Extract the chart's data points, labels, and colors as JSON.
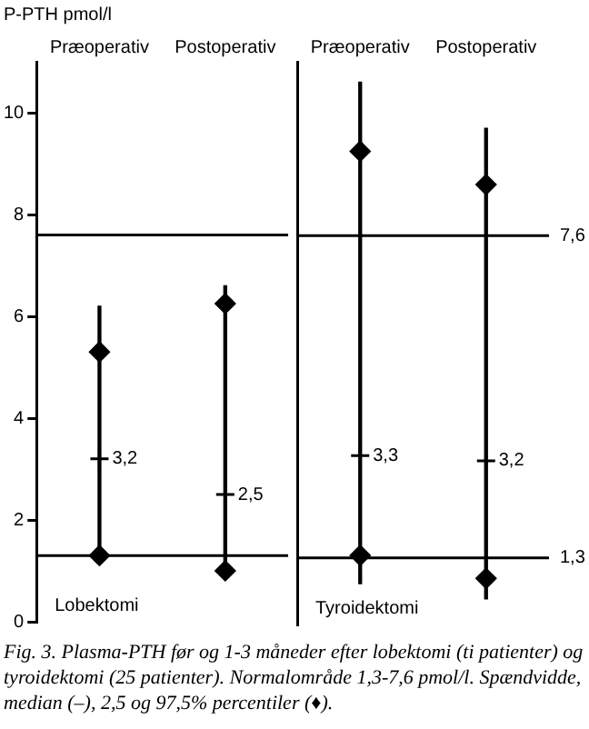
{
  "chart_data": [
    {
      "type": "bar",
      "ylabel": "P-PTH pmol/l",
      "categories": [
        "Præoperativ",
        "Postoperativ"
      ],
      "ylim": [
        0,
        11
      ],
      "yticks": [
        0,
        2,
        4,
        6,
        8,
        10
      ],
      "grid": false,
      "legend": false,
      "series": [
        {
          "type": "bar",
          "color": "#000000",
          "base": [
            1.3,
            1.0
          ],
          "values": [
            4.9,
            5.6
          ]
        },
        {
          "type": "scatter",
          "marker": "diamond",
          "color": "#000000",
          "values": [
            5.3,
            6.25
          ]
        },
        {
          "type": "scatter",
          "marker": "diamond",
          "color": "#000000",
          "values": [
            1.3,
            1.0
          ]
        },
        {
          "type": "scatter",
          "marker": "cross",
          "color": "#000000",
          "values": [
            3.2,
            2.5
          ],
          "value_labels": [
            "3,2",
            "2,5"
          ]
        }
      ],
      "ref_lines": [
        {
          "axis": "y",
          "value": 7.6
        },
        {
          "axis": "y",
          "value": 1.3
        }
      ],
      "annotations": [
        "Lobektomi",
        "Fig. 3.  Plasma-PTH før og 1-3 måneder efter lobektomi (ti patienter) og tyroidektomi (25 patienter). Normalområde 1,3-7,6 pmol/l. Spændvidde, median (–), 2,5 og 97,5% percentiler (♦)."
      ]
    },
    {
      "type": "bar",
      "categories": [
        "Præoperativ",
        "Postoperativ"
      ],
      "ylim": [
        0,
        11
      ],
      "tick_labels": "x",
      "grid": false,
      "legend": false,
      "series": [
        {
          "type": "bar",
          "color": "#000000",
          "base": [
            0.8,
            0.5
          ],
          "values": [
            9.8,
            9.2
          ]
        },
        {
          "type": "scatter",
          "marker": "diamond",
          "color": "#000000",
          "values": [
            9.25,
            8.6
          ]
        },
        {
          "type": "scatter",
          "marker": "diamond",
          "color": "#000000",
          "values": [
            1.35,
            0.9
          ]
        },
        {
          "type": "scatter",
          "marker": "cross",
          "color": "#000000",
          "values": [
            3.3,
            3.2
          ],
          "value_labels": [
            "3,3",
            "3,2"
          ]
        }
      ],
      "ref_lines": [
        {
          "axis": "y",
          "value": 7.6,
          "label": "7,6"
        },
        {
          "axis": "y",
          "value": 1.3,
          "label": "1,3"
        }
      ],
      "annotations": [
        "Tyroidektomi"
      ]
    }
  ]
}
